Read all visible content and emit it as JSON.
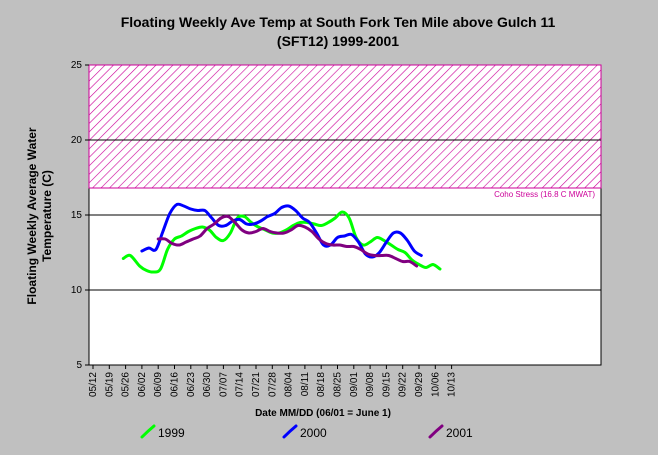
{
  "chart_data": {
    "type": "line",
    "title": "Floating Weekly Ave Temp at South Fork Ten Mile above Gulch 11",
    "subtitle": "(SFT12) 1999-2001",
    "xlabel": "Date MM/DD (06/01 = June 1)",
    "ylabel_line1": "Floating Weekly Average Water",
    "ylabel_line2": "Temperature (C)",
    "x_ticks": [
      "05/12",
      "05/19",
      "05/26",
      "06/02",
      "06/09",
      "06/16",
      "06/23",
      "06/30",
      "07/07",
      "07/14",
      "07/21",
      "07/28",
      "08/04",
      "08/11",
      "08/18",
      "08/25",
      "09/01",
      "09/08",
      "09/15",
      "09/22",
      "09/29",
      "10/06",
      "10/13"
    ],
    "y_ticks": [
      "5",
      "10",
      "15",
      "20",
      "25"
    ],
    "ylim": [
      5,
      25
    ],
    "gridlines_y": [
      10,
      15,
      20
    ],
    "threshold": {
      "value": 16.8,
      "upper": 25,
      "label": "Coho Stress (16.8 C MWAT)",
      "color": "#cc0099"
    },
    "legend_position": "bottom",
    "series": [
      {
        "name": "1999",
        "color": "#00ff00",
        "x": [
          "05/25",
          "05/28",
          "06/01",
          "06/04",
          "06/07",
          "06/10",
          "06/13",
          "06/16",
          "06/19",
          "06/22",
          "06/25",
          "06/28",
          "07/01",
          "07/04",
          "07/07",
          "07/10",
          "07/13",
          "07/16",
          "07/19",
          "07/22",
          "07/25",
          "07/28",
          "07/31",
          "08/03",
          "08/06",
          "08/09",
          "08/12",
          "08/15",
          "08/18",
          "08/21",
          "08/24",
          "08/27",
          "08/30",
          "09/02",
          "09/05",
          "09/08",
          "09/11",
          "09/14",
          "09/17",
          "09/20",
          "09/23",
          "09/26",
          "09/29",
          "10/02",
          "10/05",
          "10/08"
        ],
        "values": [
          12.1,
          12.3,
          11.6,
          11.3,
          11.2,
          11.4,
          12.7,
          13.4,
          13.6,
          13.9,
          14.1,
          14.2,
          14.0,
          13.5,
          13.3,
          13.8,
          14.8,
          14.9,
          14.5,
          14.2,
          14.0,
          13.8,
          13.8,
          14.0,
          14.3,
          14.5,
          14.5,
          14.4,
          14.3,
          14.5,
          14.8,
          15.2,
          14.8,
          13.5,
          13.0,
          13.2,
          13.5,
          13.3,
          13.0,
          12.7,
          12.5,
          12.0,
          11.7,
          11.5,
          11.7,
          11.4
        ]
      },
      {
        "name": "2000",
        "color": "#0000ff",
        "x": [
          "06/02",
          "06/05",
          "06/08",
          "06/11",
          "06/14",
          "06/17",
          "06/20",
          "06/23",
          "06/26",
          "06/29",
          "07/02",
          "07/05",
          "07/08",
          "07/11",
          "07/14",
          "07/17",
          "07/20",
          "07/23",
          "07/26",
          "07/29",
          "08/01",
          "08/04",
          "08/07",
          "08/10",
          "08/13",
          "08/16",
          "08/19",
          "08/22",
          "08/25",
          "08/28",
          "08/31",
          "09/03",
          "09/06",
          "09/09",
          "09/12",
          "09/15",
          "09/18",
          "09/21",
          "09/24",
          "09/27",
          "09/30"
        ],
        "values": [
          12.6,
          12.8,
          12.7,
          13.9,
          15.1,
          15.7,
          15.6,
          15.4,
          15.3,
          15.3,
          14.8,
          14.3,
          14.3,
          14.6,
          14.7,
          14.4,
          14.4,
          14.6,
          14.9,
          15.1,
          15.5,
          15.6,
          15.3,
          14.8,
          14.5,
          13.8,
          13.0,
          13.0,
          13.5,
          13.6,
          13.7,
          13.2,
          12.4,
          12.2,
          12.5,
          13.2,
          13.8,
          13.8,
          13.3,
          12.6,
          12.3
        ]
      },
      {
        "name": "2001",
        "color": "#800080",
        "x": [
          "06/09",
          "06/12",
          "06/15",
          "06/18",
          "06/21",
          "06/24",
          "06/27",
          "06/30",
          "07/03",
          "07/06",
          "07/09",
          "07/12",
          "07/15",
          "07/18",
          "07/21",
          "07/24",
          "07/27",
          "07/30",
          "08/02",
          "08/05",
          "08/08",
          "08/11",
          "08/14",
          "08/17",
          "08/20",
          "08/23",
          "08/26",
          "08/29",
          "09/01",
          "09/04",
          "09/07",
          "09/10",
          "09/13",
          "09/16",
          "09/19",
          "09/22",
          "09/25",
          "09/28"
        ],
        "values": [
          13.4,
          13.4,
          13.1,
          13.0,
          13.2,
          13.4,
          13.6,
          14.1,
          14.4,
          14.8,
          14.9,
          14.5,
          14.0,
          13.8,
          13.9,
          14.1,
          13.9,
          13.8,
          13.8,
          14.0,
          14.3,
          14.2,
          13.9,
          13.4,
          13.1,
          13.0,
          13.0,
          12.9,
          12.9,
          12.7,
          12.4,
          12.3,
          12.3,
          12.3,
          12.1,
          11.9,
          11.9,
          11.6
        ]
      }
    ]
  }
}
